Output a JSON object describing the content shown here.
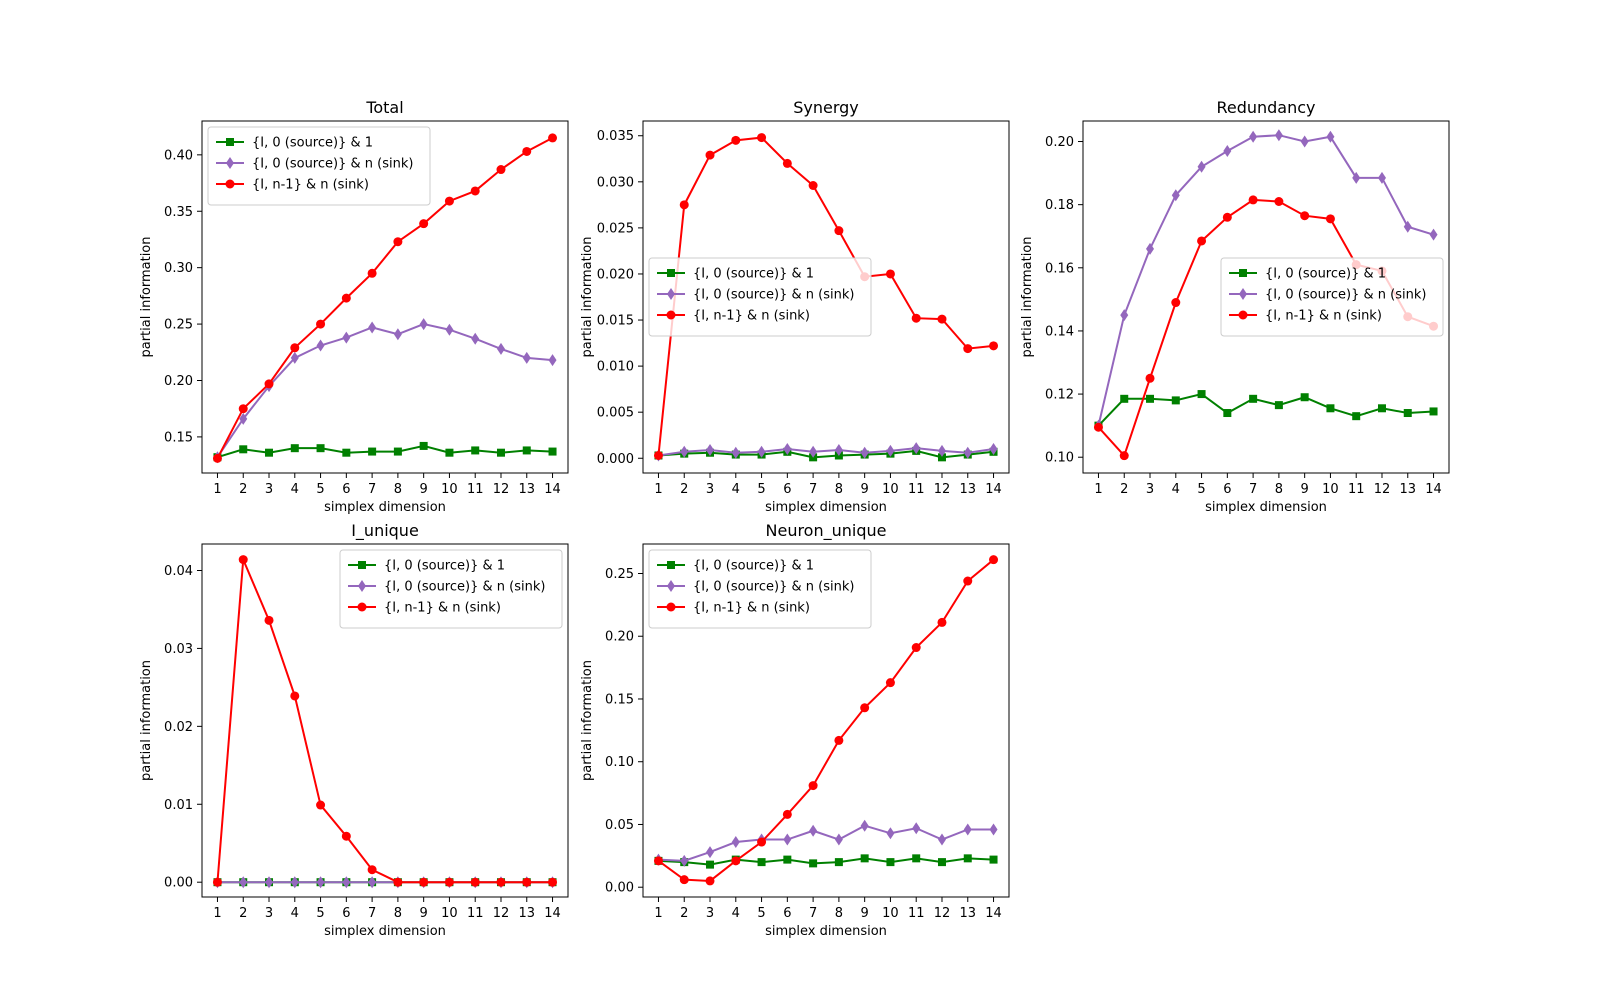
{
  "legend_labels": [
    "{I, 0 (source)} & 1",
    "{I, 0 (source)} & n (sink)",
    "{I, n-1} & n (sink)"
  ],
  "series_colors": [
    "#008000",
    "#9467bd",
    "#ff0000"
  ],
  "series_markers": [
    "square",
    "diamond",
    "circle"
  ],
  "chart_data": [
    {
      "type": "line",
      "title": "Total",
      "xlabel": "simplex dimension",
      "ylabel": "partial information",
      "x": [
        1,
        2,
        3,
        4,
        5,
        6,
        7,
        8,
        9,
        10,
        11,
        12,
        13,
        14
      ],
      "xlim": [
        0.4,
        14.6
      ],
      "ylim": [
        0.118,
        0.43
      ],
      "yticks": [
        0.15,
        0.2,
        0.25,
        0.3,
        0.35,
        0.4
      ],
      "ytick_labels": [
        "0.15",
        "0.20",
        "0.25",
        "0.30",
        "0.35",
        "0.40"
      ],
      "legend_loc": "upper-left",
      "series": [
        {
          "name": "{I, 0 (source)} & 1",
          "values": [
            0.132,
            0.139,
            0.136,
            0.14,
            0.14,
            0.136,
            0.137,
            0.137,
            0.142,
            0.136,
            0.138,
            0.136,
            0.138,
            0.137
          ]
        },
        {
          "name": "{I, 0 (source)} & n (sink)",
          "values": [
            0.132,
            0.166,
            0.195,
            0.22,
            0.231,
            0.238,
            0.247,
            0.241,
            0.25,
            0.245,
            0.237,
            0.228,
            0.22,
            0.218
          ]
        },
        {
          "name": "{I, n-1} & n (sink)",
          "values": [
            0.131,
            0.175,
            0.197,
            0.229,
            0.25,
            0.273,
            0.295,
            0.323,
            0.339,
            0.359,
            0.368,
            0.387,
            0.403,
            0.415
          ]
        }
      ]
    },
    {
      "type": "line",
      "title": "Synergy",
      "xlabel": "simplex dimension",
      "ylabel": "partial information",
      "x": [
        1,
        2,
        3,
        4,
        5,
        6,
        7,
        8,
        9,
        10,
        11,
        12,
        13,
        14
      ],
      "xlim": [
        0.4,
        14.6
      ],
      "ylim": [
        -0.0016,
        0.0366
      ],
      "yticks": [
        0.0,
        0.005,
        0.01,
        0.015,
        0.02,
        0.025,
        0.03,
        0.035
      ],
      "ytick_labels": [
        "0.000",
        "0.005",
        "0.010",
        "0.015",
        "0.020",
        "0.025",
        "0.030",
        "0.035"
      ],
      "legend_loc": "center-left",
      "series": [
        {
          "name": "{I, 0 (source)} & 1",
          "values": [
            0.0003,
            0.0005,
            0.0006,
            0.0004,
            0.0004,
            0.0007,
            0.0001,
            0.0003,
            0.0004,
            0.0005,
            0.0008,
            0.0001,
            0.0004,
            0.0007
          ]
        },
        {
          "name": "{I, 0 (source)} & n (sink)",
          "values": [
            0.0003,
            0.0007,
            0.0009,
            0.0006,
            0.0007,
            0.001,
            0.0007,
            0.0009,
            0.0006,
            0.0008,
            0.0011,
            0.0008,
            0.0006,
            0.001
          ]
        },
        {
          "name": "{I, n-1} & n (sink)",
          "values": [
            0.0003,
            0.0275,
            0.0329,
            0.0345,
            0.0348,
            0.032,
            0.0296,
            0.0247,
            0.0197,
            0.02,
            0.0152,
            0.0151,
            0.0119,
            0.0122
          ]
        }
      ]
    },
    {
      "type": "line",
      "title": "Redundancy",
      "xlabel": "simplex dimension",
      "ylabel": "partial information",
      "x": [
        1,
        2,
        3,
        4,
        5,
        6,
        7,
        8,
        9,
        10,
        11,
        12,
        13,
        14
      ],
      "xlim": [
        0.4,
        14.6
      ],
      "ylim": [
        0.095,
        0.2065
      ],
      "yticks": [
        0.1,
        0.12,
        0.14,
        0.16,
        0.18,
        0.2
      ],
      "ytick_labels": [
        "0.10",
        "0.12",
        "0.14",
        "0.16",
        "0.18",
        "0.20"
      ],
      "legend_loc": "center-right",
      "series": [
        {
          "name": "{I, 0 (source)} & 1",
          "values": [
            0.11,
            0.1185,
            0.1185,
            0.118,
            0.12,
            0.114,
            0.1185,
            0.1165,
            0.119,
            0.1155,
            0.113,
            0.1155,
            0.114,
            0.1145
          ]
        },
        {
          "name": "{I, 0 (source)} & n (sink)",
          "values": [
            0.11,
            0.145,
            0.166,
            0.183,
            0.192,
            0.197,
            0.2015,
            0.202,
            0.2,
            0.2015,
            0.1885,
            0.1885,
            0.173,
            0.1705
          ]
        },
        {
          "name": "{I, n-1} & n (sink)",
          "values": [
            0.1095,
            0.1005,
            0.125,
            0.149,
            0.1685,
            0.176,
            0.1815,
            0.181,
            0.1765,
            0.1755,
            0.161,
            0.159,
            0.1445,
            0.1415
          ]
        }
      ]
    },
    {
      "type": "line",
      "title": "I_unique",
      "xlabel": "simplex dimension",
      "ylabel": "partial information",
      "x": [
        1,
        2,
        3,
        4,
        5,
        6,
        7,
        8,
        9,
        10,
        11,
        12,
        13,
        14
      ],
      "xlim": [
        0.4,
        14.6
      ],
      "ylim": [
        -0.0019,
        0.0434
      ],
      "yticks": [
        0.0,
        0.01,
        0.02,
        0.03,
        0.04
      ],
      "ytick_labels": [
        "0.00",
        "0.01",
        "0.02",
        "0.03",
        "0.04"
      ],
      "legend_loc": "upper-right",
      "series": [
        {
          "name": "{I, 0 (source)} & 1",
          "values": [
            0,
            0,
            0,
            0,
            0,
            0,
            0,
            0,
            0,
            0,
            0,
            0,
            0,
            0
          ]
        },
        {
          "name": "{I, 0 (source)} & n (sink)",
          "values": [
            0,
            0,
            0,
            0,
            0,
            0,
            0,
            0,
            0,
            0,
            0,
            0,
            0,
            0
          ]
        },
        {
          "name": "{I, n-1} & n (sink)",
          "values": [
            0,
            0.0414,
            0.0336,
            0.0239,
            0.0099,
            0.0059,
            0.0016,
            0,
            0,
            0,
            0,
            0,
            0,
            0
          ]
        }
      ]
    },
    {
      "type": "line",
      "title": "Neuron_unique",
      "xlabel": "simplex dimension",
      "ylabel": "partial information",
      "x": [
        1,
        2,
        3,
        4,
        5,
        6,
        7,
        8,
        9,
        10,
        11,
        12,
        13,
        14
      ],
      "xlim": [
        0.4,
        14.6
      ],
      "ylim": [
        -0.0078,
        0.2735
      ],
      "yticks": [
        0.0,
        0.05,
        0.1,
        0.15,
        0.2,
        0.25
      ],
      "ytick_labels": [
        "0.00",
        "0.05",
        "0.10",
        "0.15",
        "0.20",
        "0.25"
      ],
      "legend_loc": "upper-left",
      "series": [
        {
          "name": "{I, 0 (source)} & 1",
          "values": [
            0.021,
            0.02,
            0.018,
            0.022,
            0.02,
            0.022,
            0.019,
            0.02,
            0.023,
            0.02,
            0.023,
            0.02,
            0.023,
            0.022
          ]
        },
        {
          "name": "{I, 0 (source)} & n (sink)",
          "values": [
            0.022,
            0.021,
            0.028,
            0.036,
            0.038,
            0.038,
            0.045,
            0.038,
            0.049,
            0.043,
            0.047,
            0.038,
            0.046,
            0.046
          ]
        },
        {
          "name": "{I, n-1} & n (sink)",
          "values": [
            0.021,
            0.006,
            0.005,
            0.021,
            0.036,
            0.058,
            0.081,
            0.117,
            0.143,
            0.163,
            0.191,
            0.211,
            0.244,
            0.261
          ]
        }
      ]
    }
  ]
}
